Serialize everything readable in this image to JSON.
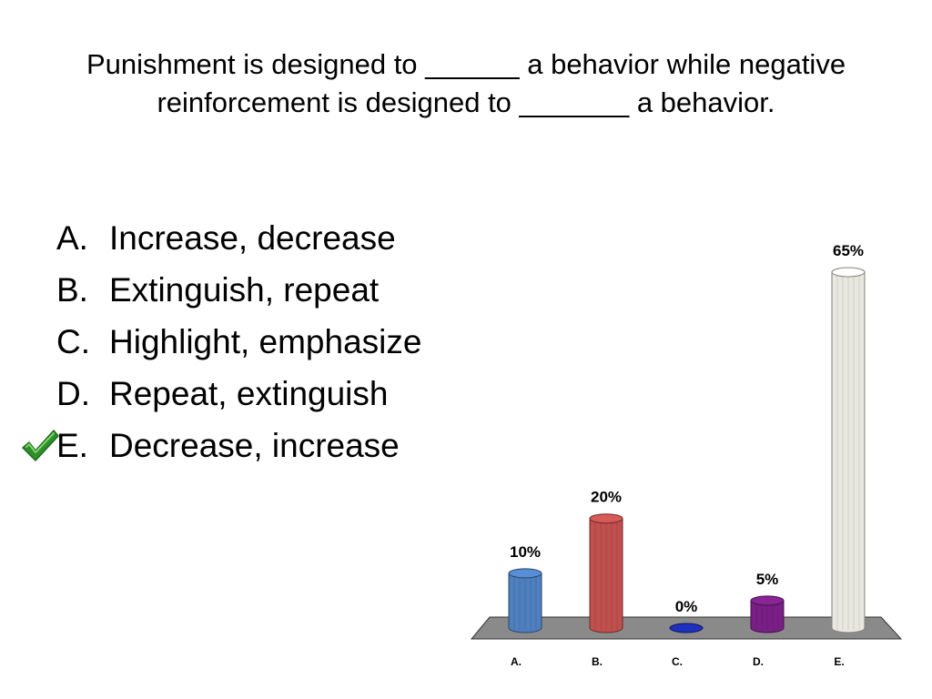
{
  "question": {
    "text": "Punishment is designed to  ______ a behavior while negative reinforcement is designed to _______ a behavior."
  },
  "answers": [
    {
      "letter": "A.",
      "text": "Increase, decrease"
    },
    {
      "letter": "B.",
      "text": "Extinguish, repeat"
    },
    {
      "letter": "C.",
      "text": "Highlight, emphasize"
    },
    {
      "letter": "D.",
      "text": "Repeat, extinguish"
    },
    {
      "letter": "E.",
      "text": "Decrease, increase"
    }
  ],
  "correct_answer": {
    "letter": "E.",
    "icon": "checkmark-icon",
    "color": "#3aa630"
  },
  "chart_data": {
    "type": "bar",
    "categories": [
      "A.",
      "B.",
      "C.",
      "D.",
      "E."
    ],
    "values": [
      10,
      20,
      0,
      5,
      65
    ],
    "value_labels": [
      "10%",
      "20%",
      "0%",
      "5%",
      "65%"
    ],
    "colors": [
      "#4f7fbf",
      "#c0504d",
      "#1f2fbf",
      "#7a1f86",
      "#e9e8e0"
    ],
    "ylim": [
      0,
      65
    ],
    "grid": false,
    "floor_color": "#8a8a8a"
  }
}
